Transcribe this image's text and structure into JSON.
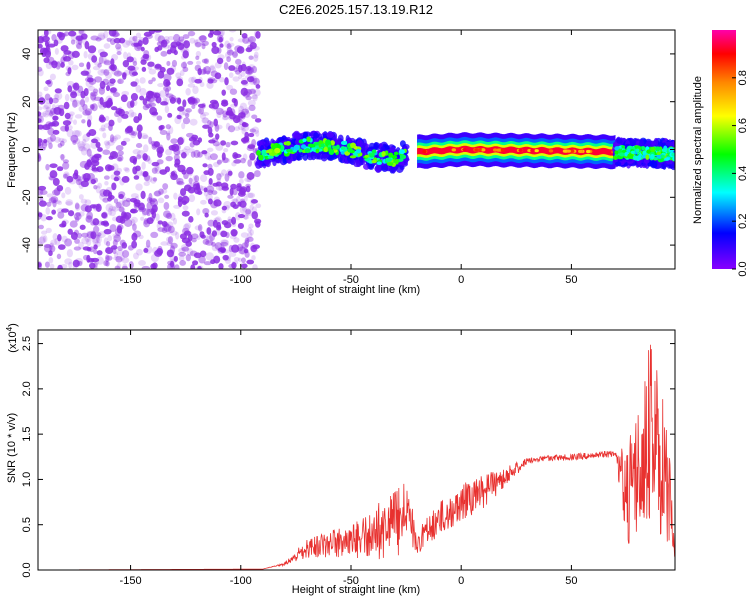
{
  "chart_data": [
    {
      "type": "heatmap",
      "title": "C2E6.2025.157.13.19.R12",
      "xlabel": "Height of straight line (km)",
      "ylabel": "Frequency (Hz)",
      "xlim": [
        -192,
        97
      ],
      "ylim": [
        -50,
        50
      ],
      "xticks": [
        -150,
        -100,
        -50,
        0,
        50
      ],
      "yticks": [
        -40,
        -20,
        0,
        20,
        40
      ],
      "colorbar": {
        "label": "Normalized spectral amplitude",
        "range": [
          0,
          1
        ],
        "ticks": [
          0.0,
          0.2,
          0.4,
          0.6,
          0.8
        ],
        "colormap": [
          "#8800ff",
          "#0000ff",
          "#00ffff",
          "#00ff00",
          "#ffff00",
          "#ff8800",
          "#ff0000",
          "#ff00aa"
        ]
      },
      "regions": [
        {
          "x_range": [
            -192,
            -92
          ],
          "freq_range": [
            -50,
            50
          ],
          "amplitude": 0.05,
          "pattern": "noise"
        },
        {
          "x_range": [
            -92,
            -25
          ],
          "freq_center": [
            [
              -92,
              -2
            ],
            [
              -70,
              2
            ],
            [
              -55,
              1
            ],
            [
              -40,
              -3
            ],
            [
              -30,
              -4
            ],
            [
              -25,
              -2
            ]
          ],
          "amplitude": 0.4,
          "pattern": "scattered-blobs"
        },
        {
          "x_range": [
            -20,
            70
          ],
          "freq_center": [
            [
              -20,
              -1
            ],
            [
              0,
              0
            ],
            [
              70,
              -1
            ]
          ],
          "amplitude": 0.9,
          "pattern": "continuous-band"
        },
        {
          "x_range": [
            70,
            97
          ],
          "freq_center": [
            [
              70,
              -1
            ],
            [
              97,
              -2
            ]
          ],
          "amplitude": 0.35,
          "pattern": "scattered-blobs"
        }
      ]
    },
    {
      "type": "line",
      "xlabel": "Height of straight line (km)",
      "ylabel": "SNR (10 * v/v)",
      "yscale_label": "(x10^4)",
      "xlim": [
        -192,
        97
      ],
      "ylim": [
        0,
        2.65
      ],
      "xticks": [
        -150,
        -100,
        -50,
        0,
        50
      ],
      "yticks": [
        0.0,
        0.5,
        1.0,
        1.5,
        2.0,
        2.5
      ],
      "color": "#e8312f",
      "envelope": [
        {
          "x": -192,
          "y": 0.0
        },
        {
          "x": -90,
          "y": 0.01
        },
        {
          "x": -80,
          "y": 0.08
        },
        {
          "x": -70,
          "y": 0.35
        },
        {
          "x": -60,
          "y": 0.45
        },
        {
          "x": -50,
          "y": 0.5
        },
        {
          "x": -40,
          "y": 0.7
        },
        {
          "x": -30,
          "y": 0.9
        },
        {
          "x": -25,
          "y": 1.0
        },
        {
          "x": -20,
          "y": 0.45
        },
        {
          "x": -10,
          "y": 0.75
        },
        {
          "x": 0,
          "y": 0.95
        },
        {
          "x": 10,
          "y": 1.05
        },
        {
          "x": 20,
          "y": 1.15
        },
        {
          "x": 30,
          "y": 1.24
        },
        {
          "x": 40,
          "y": 1.27
        },
        {
          "x": 50,
          "y": 1.28
        },
        {
          "x": 60,
          "y": 1.3
        },
        {
          "x": 70,
          "y": 1.32
        },
        {
          "x": 75,
          "y": 1.4
        },
        {
          "x": 80,
          "y": 1.8
        },
        {
          "x": 85,
          "y": 2.6
        },
        {
          "x": 90,
          "y": 2.2
        },
        {
          "x": 95,
          "y": 1.2
        },
        {
          "x": 97,
          "y": 0.2
        }
      ],
      "noise": [
        {
          "x": -192,
          "amp": 0.0
        },
        {
          "x": -90,
          "amp": 0.01
        },
        {
          "x": -75,
          "amp": 0.6
        },
        {
          "x": -30,
          "amp": 0.9
        },
        {
          "x": -20,
          "amp": 0.6
        },
        {
          "x": 10,
          "amp": 0.35
        },
        {
          "x": 30,
          "amp": 0.05
        },
        {
          "x": 70,
          "amp": 0.06
        },
        {
          "x": 75,
          "amp": 0.8
        },
        {
          "x": 97,
          "amp": 0.9
        }
      ]
    }
  ]
}
